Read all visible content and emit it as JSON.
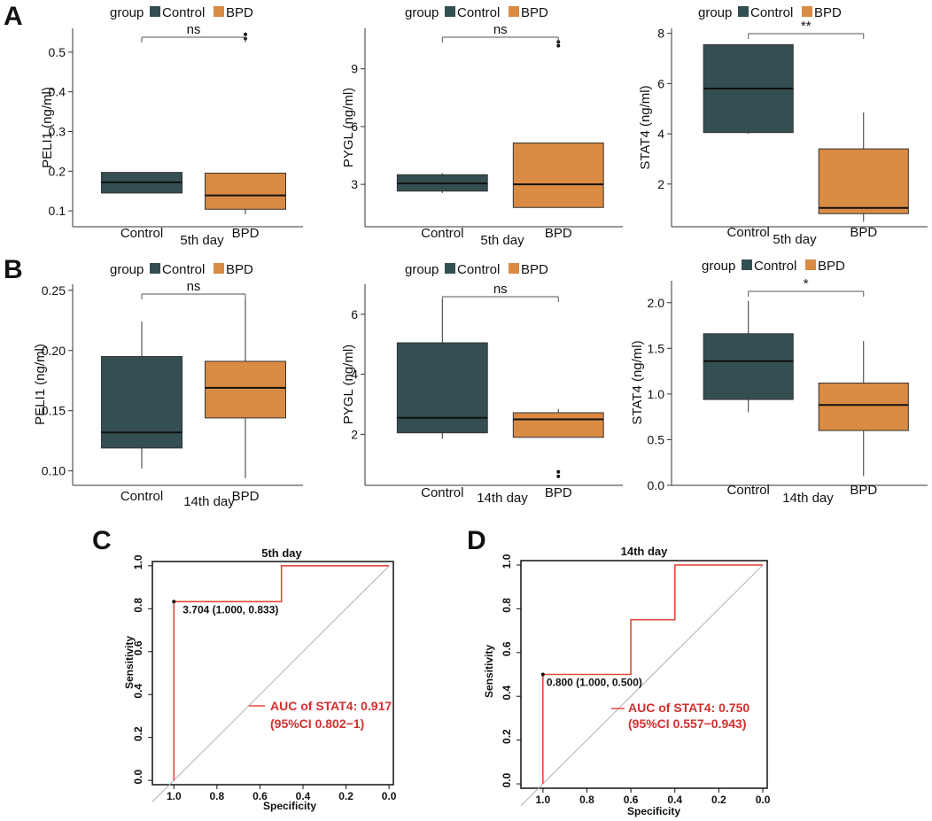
{
  "panels": [
    {
      "letter": "A"
    },
    {
      "letter": "B"
    },
    {
      "letter": "C"
    },
    {
      "letter": "D"
    }
  ],
  "colors": {
    "control": "#344f52",
    "bpd": "#d98b43",
    "roc_line": "#e04a3c",
    "auc_text": "#d32f2f",
    "diagonal": "#b0b0b0"
  },
  "chart_data": [
    {
      "type": "box",
      "panel": "A",
      "title": "",
      "legend_title": "group",
      "legend": [
        "Control",
        "BPD"
      ],
      "categories": [
        "Control",
        "BPD"
      ],
      "xlabel": "5th day",
      "ylabel": "PELI1 (ng/ml)",
      "ylim": [
        0.06,
        0.56
      ],
      "yticks": [
        0.1,
        0.2,
        0.3,
        0.4,
        0.5
      ],
      "series": [
        {
          "name": "Control",
          "min": 0.145,
          "q1": 0.145,
          "median": 0.172,
          "q3": 0.197,
          "max": 0.197,
          "outliers": []
        },
        {
          "name": "BPD",
          "min": 0.091,
          "q1": 0.104,
          "median": 0.139,
          "q3": 0.195,
          "max": 0.195,
          "outliers": [
            0.534,
            0.545
          ]
        }
      ],
      "significance": "ns"
    },
    {
      "type": "box",
      "panel": "A",
      "title": "",
      "legend_title": "group",
      "legend": [
        "Control",
        "BPD"
      ],
      "categories": [
        "Control",
        "BPD"
      ],
      "xlabel": "5th day",
      "ylabel": "PYGL (ng/ml)",
      "ylim": [
        0.8,
        11.1
      ],
      "yticks": [
        3,
        6,
        9
      ],
      "series": [
        {
          "name": "Control",
          "min": 2.55,
          "q1": 2.65,
          "median": 3.05,
          "q3": 3.5,
          "max": 3.58,
          "outliers": []
        },
        {
          "name": "BPD",
          "min": 1.8,
          "q1": 1.8,
          "median": 3.0,
          "q3": 5.15,
          "max": 5.15,
          "outliers": [
            10.2,
            10.4
          ]
        }
      ],
      "significance": "ns"
    },
    {
      "type": "box",
      "panel": "A",
      "title": "",
      "legend_title": "group",
      "legend": [
        "Control",
        "BPD"
      ],
      "categories": [
        "Control",
        "BPD"
      ],
      "xlabel": "5th day",
      "ylabel": "STAT4 (ng/ml)",
      "ylim": [
        0.3,
        8.2
      ],
      "yticks": [
        2,
        4,
        6,
        8
      ],
      "series": [
        {
          "name": "Control",
          "min": 4.0,
          "q1": 4.05,
          "median": 5.8,
          "q3": 7.55,
          "max": 7.55,
          "outliers": []
        },
        {
          "name": "BPD",
          "min": 0.5,
          "q1": 0.82,
          "median": 1.05,
          "q3": 3.4,
          "max": 4.85,
          "outliers": []
        }
      ],
      "significance": "**"
    },
    {
      "type": "box",
      "panel": "B",
      "title": "",
      "legend_title": "group",
      "legend": [
        "Control",
        "BPD"
      ],
      "categories": [
        "Control",
        "BPD"
      ],
      "xlabel": "14th day",
      "ylabel": "PELI1 (ng/ml)",
      "ylim": [
        0.088,
        0.255
      ],
      "yticks": [
        0.1,
        0.15,
        0.2,
        0.25
      ],
      "ytick_labels": [
        "0.10",
        "0.15",
        "0.20",
        "0.25"
      ],
      "series": [
        {
          "name": "Control",
          "min": 0.102,
          "q1": 0.119,
          "median": 0.132,
          "q3": 0.195,
          "max": 0.224,
          "outliers": []
        },
        {
          "name": "BPD",
          "min": 0.094,
          "q1": 0.144,
          "median": 0.169,
          "q3": 0.191,
          "max": 0.244,
          "outliers": []
        }
      ],
      "significance": "ns"
    },
    {
      "type": "box",
      "panel": "B",
      "title": "",
      "legend_title": "group",
      "legend": [
        "Control",
        "BPD"
      ],
      "categories": [
        "Control",
        "BPD"
      ],
      "xlabel": "14th day",
      "ylabel": "PYGL (ng/ml)",
      "ylim": [
        0.3,
        7.0
      ],
      "yticks": [
        2,
        4,
        6
      ],
      "series": [
        {
          "name": "Control",
          "min": 1.85,
          "q1": 2.05,
          "median": 2.55,
          "q3": 5.05,
          "max": 6.5,
          "outliers": []
        },
        {
          "name": "BPD",
          "min": 1.9,
          "q1": 1.9,
          "median": 2.5,
          "q3": 2.72,
          "max": 2.85,
          "outliers": [
            0.6,
            0.75
          ]
        }
      ],
      "significance": "ns"
    },
    {
      "type": "box",
      "panel": "B",
      "title": "",
      "legend_title": "group",
      "legend": [
        "Control",
        "BPD"
      ],
      "categories": [
        "Control",
        "BPD"
      ],
      "xlabel": "14th day",
      "ylabel": "STAT4 (ng/ml)",
      "ylim": [
        0.0,
        2.24
      ],
      "yticks": [
        0,
        0.5,
        1.0,
        1.5,
        2.0
      ],
      "ytick_labels": [
        "0.0",
        "0.5",
        "1.0",
        "1.5",
        "2.0"
      ],
      "series": [
        {
          "name": "Control",
          "min": 0.8,
          "q1": 0.94,
          "median": 1.36,
          "q3": 1.66,
          "max": 2.02,
          "outliers": []
        },
        {
          "name": "BPD",
          "min": 0.1,
          "q1": 0.6,
          "median": 0.88,
          "q3": 1.12,
          "max": 1.58,
          "outliers": []
        }
      ],
      "significance": "*"
    },
    {
      "type": "roc",
      "panel": "C",
      "title": "5th day",
      "xlabel": "Specificity",
      "ylabel": "Sensitivity",
      "xlim": [
        1.1,
        -0.02
      ],
      "ylim": [
        -0.02,
        1.02
      ],
      "xticks": [
        1.0,
        0.8,
        0.6,
        0.4,
        0.2,
        0.0
      ],
      "xtick_labels": [
        "1.0",
        "0.8",
        "0.6",
        "0.4",
        "0.2",
        "0.0"
      ],
      "yticks": [
        0.0,
        0.2,
        0.4,
        0.6,
        0.8,
        1.0
      ],
      "ytick_labels": [
        "0.0",
        "0.2",
        "0.4",
        "0.6",
        "0.8",
        "1.0"
      ],
      "specificity": [
        1.0,
        1.0,
        0.5,
        0.5,
        0.0
      ],
      "sensitivity": [
        0.0,
        0.833,
        0.833,
        1.0,
        1.0
      ],
      "threshold_point": {
        "specificity": 1.0,
        "sensitivity": 0.833,
        "label": "3.704 (1.000, 0.833)"
      },
      "auc_label_1": "AUC of STAT4: 0.917",
      "auc_label_2": "(95%CI 0.802−1)"
    },
    {
      "type": "roc",
      "panel": "D",
      "title": "14th day",
      "xlabel": "Specificity",
      "ylabel": "Sensitivity",
      "xlim": [
        1.1,
        -0.02
      ],
      "ylim": [
        -0.02,
        1.02
      ],
      "xticks": [
        1.0,
        0.8,
        0.6,
        0.4,
        0.2,
        0.0
      ],
      "xtick_labels": [
        "1.0",
        "0.8",
        "0.6",
        "0.4",
        "0.2",
        "0.0"
      ],
      "yticks": [
        0.0,
        0.2,
        0.4,
        0.6,
        0.8,
        1.0
      ],
      "ytick_labels": [
        "0.0",
        "0.2",
        "0.4",
        "0.6",
        "0.8",
        "1.0"
      ],
      "specificity": [
        1.0,
        1.0,
        0.6,
        0.6,
        0.4,
        0.4,
        0.0
      ],
      "sensitivity": [
        0.0,
        0.5,
        0.5,
        0.75,
        0.75,
        1.0,
        1.0
      ],
      "threshold_point": {
        "specificity": 1.0,
        "sensitivity": 0.5,
        "label": "0.800 (1.000, 0.500)"
      },
      "auc_label_1": "AUC of STAT4: 0.750",
      "auc_label_2": "(95%CI 0.557−0.943)"
    }
  ]
}
